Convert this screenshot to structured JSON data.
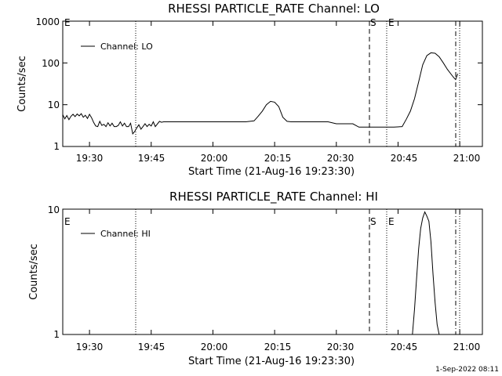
{
  "chart_data": [
    {
      "type": "line",
      "title": "RHESSI PARTICLE_RATE Channel: LO",
      "xlabel": "Start Time (21-Aug-16 19:23:30)",
      "ylabel": "Counts/sec",
      "yscale": "log",
      "ylim": [
        1,
        1000
      ],
      "ytick_labels": [
        "1",
        "10",
        "100",
        "1000"
      ],
      "xlim": [
        "19:23:30",
        "21:05:30"
      ],
      "xtick_labels": [
        "19:30",
        "19:45",
        "20:00",
        "20:15",
        "20:30",
        "20:45",
        "21:00"
      ],
      "legend": {
        "entries": [
          "Channel: LO"
        ],
        "position": "top-left"
      },
      "event_markers": [
        {
          "label": "E",
          "time": "19:23:30",
          "style": "none"
        },
        {
          "label": "",
          "time": "19:41:30",
          "style": "dotted"
        },
        {
          "label": "S",
          "time": "20:35:30",
          "style": "dashed"
        },
        {
          "label": "E",
          "time": "20:40:30",
          "style": "dotted"
        },
        {
          "label": "",
          "time": "20:59:30",
          "style": "dash-dot"
        },
        {
          "label": "",
          "time": "21:00:30",
          "style": "dotted"
        }
      ],
      "series": [
        {
          "name": "Channel: LO",
          "x": [
            "19:23:30",
            "19:24:00",
            "19:24:30",
            "19:25:00",
            "19:25:30",
            "19:26:00",
            "19:26:30",
            "19:27:00",
            "19:27:30",
            "19:28:00",
            "19:28:30",
            "19:29:00",
            "19:29:30",
            "19:30:00",
            "19:30:30",
            "19:31:00",
            "19:31:30",
            "19:32:00",
            "19:32:30",
            "19:33:00",
            "19:33:30",
            "19:34:00",
            "19:34:30",
            "19:35:00",
            "19:35:30",
            "19:36:00",
            "19:36:30",
            "19:37:00",
            "19:37:30",
            "19:38:00",
            "19:38:30",
            "19:39:00",
            "19:39:30",
            "19:40:00",
            "19:40:30",
            "19:41:00",
            "19:41:30",
            "19:42:00",
            "19:42:30",
            "19:43:00",
            "19:43:30",
            "19:44:00",
            "19:44:30",
            "19:45:00",
            "19:45:30",
            "19:46:00",
            "19:47:00",
            "19:47:30",
            "19:48:00",
            "19:50:00",
            "19:52:00",
            "19:54:00",
            "19:56:00",
            "19:58:00",
            "20:00:00",
            "20:02:00",
            "20:04:00",
            "20:06:00",
            "20:08:00",
            "20:10:00",
            "20:11:00",
            "20:12:00",
            "20:13:00",
            "20:14:00",
            "20:15:00",
            "20:16:00",
            "20:17:00",
            "20:18:00",
            "20:19:00",
            "20:20:00",
            "20:22:00",
            "20:24:00",
            "20:26:00",
            "20:28:00",
            "20:30:00",
            "20:32:00",
            "20:34:00",
            "20:35:30",
            "20:38:00",
            "20:41:00",
            "20:44:00",
            "20:46:00",
            "20:47:00",
            "20:48:00",
            "20:49:00",
            "20:50:00",
            "20:51:00",
            "20:52:00",
            "20:53:00",
            "20:54:00",
            "20:55:00",
            "20:56:00",
            "20:57:00",
            "20:58:00",
            "20:58:30",
            "20:59:00",
            "20:59:30"
          ],
          "y": [
            5.8,
            4.6,
            5.5,
            4.4,
            5.3,
            5.9,
            5.2,
            6.0,
            5.4,
            6.1,
            5.0,
            5.6,
            4.7,
            5.9,
            4.9,
            3.8,
            3.1,
            3.0,
            4.0,
            3.2,
            3.4,
            3.0,
            3.7,
            3.1,
            3.6,
            3.0,
            3.0,
            3.2,
            3.9,
            3.1,
            3.6,
            3.0,
            3.0,
            3.6,
            2.0,
            2.3,
            2.8,
            3.3,
            2.6,
            3.0,
            3.5,
            3.0,
            3.4,
            3.1,
            3.9,
            3.0,
            4.0,
            3.8,
            3.9,
            3.9,
            3.9,
            3.9,
            3.9,
            3.9,
            3.9,
            3.9,
            3.9,
            3.9,
            3.9,
            4.1,
            5.3,
            7.0,
            10.0,
            12.0,
            11.5,
            9.0,
            5.0,
            4.0,
            3.9,
            3.9,
            3.9,
            3.9,
            3.9,
            3.9,
            3.5,
            3.5,
            3.5,
            2.9,
            2.9,
            2.9,
            2.9,
            3.0,
            4.5,
            7.0,
            14.0,
            35.0,
            90.0,
            150.0,
            175.0,
            170.0,
            140.0,
            100.0,
            70.0,
            52.0,
            45.0,
            40.0,
            55.0
          ]
        }
      ]
    },
    {
      "type": "line",
      "title": "RHESSI PARTICLE_RATE Channel: HI",
      "xlabel": "Start Time (21-Aug-16 19:23:30)",
      "ylabel": "Counts/sec",
      "yscale": "log",
      "ylim": [
        1,
        10
      ],
      "ytick_labels": [
        "1",
        "10"
      ],
      "xlim": [
        "19:23:30",
        "21:05:30"
      ],
      "xtick_labels": [
        "19:30",
        "19:45",
        "20:00",
        "20:15",
        "20:30",
        "20:45",
        "21:00"
      ],
      "legend": {
        "entries": [
          "Channel: HI"
        ],
        "position": "top-left"
      },
      "event_markers": [
        {
          "label": "E",
          "time": "19:23:30",
          "style": "none"
        },
        {
          "label": "",
          "time": "19:41:30",
          "style": "dotted"
        },
        {
          "label": "S",
          "time": "20:35:30",
          "style": "dashed"
        },
        {
          "label": "E",
          "time": "20:40:30",
          "style": "dotted"
        },
        {
          "label": "",
          "time": "20:59:30",
          "style": "dash-dot"
        },
        {
          "label": "",
          "time": "21:00:30",
          "style": "dotted"
        }
      ],
      "series": [
        {
          "name": "Channel: HI",
          "x": [
            "20:48:30",
            "20:49:00",
            "20:49:30",
            "20:50:00",
            "20:50:30",
            "20:51:00",
            "20:51:30",
            "20:52:00",
            "20:52:30",
            "20:53:00",
            "20:53:30",
            "20:54:00",
            "20:54:30",
            "20:55:00"
          ],
          "y": [
            1.0,
            1.6,
            2.8,
            4.8,
            7.0,
            8.5,
            9.5,
            8.8,
            8.0,
            5.5,
            3.0,
            1.8,
            1.2,
            1.0
          ]
        }
      ]
    }
  ],
  "footer": {
    "timestamp": "1-Sep-2022 08:11"
  }
}
